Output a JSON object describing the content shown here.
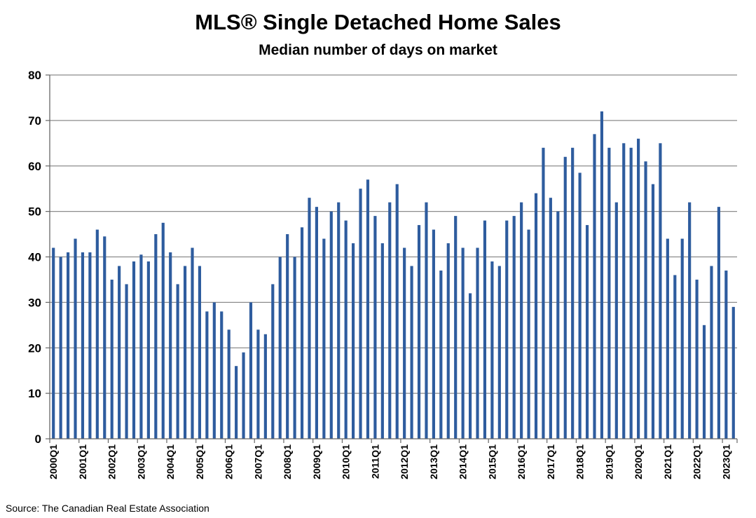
{
  "chart_data": {
    "type": "bar",
    "title": "MLS® Single Detached Home Sales",
    "subtitle": "Median number of days on market",
    "xlabel": "",
    "ylabel": "",
    "ylim": [
      0,
      80
    ],
    "yticks": [
      0,
      10,
      20,
      30,
      40,
      50,
      60,
      70,
      80
    ],
    "grid": true,
    "bar_color": "#2E5C9E",
    "categories": [
      "2000Q1",
      "2000Q2",
      "2000Q3",
      "2000Q4",
      "2001Q1",
      "2001Q2",
      "2001Q3",
      "2001Q4",
      "2002Q1",
      "2002Q2",
      "2002Q3",
      "2002Q4",
      "2003Q1",
      "2003Q2",
      "2003Q3",
      "2003Q4",
      "2004Q1",
      "2004Q2",
      "2004Q3",
      "2004Q4",
      "2005Q1",
      "2005Q2",
      "2005Q3",
      "2005Q4",
      "2006Q1",
      "2006Q2",
      "2006Q3",
      "2006Q4",
      "2007Q1",
      "2007Q2",
      "2007Q3",
      "2007Q4",
      "2008Q1",
      "2008Q2",
      "2008Q3",
      "2008Q4",
      "2009Q1",
      "2009Q2",
      "2009Q3",
      "2009Q4",
      "2010Q1",
      "2010Q2",
      "2010Q3",
      "2010Q4",
      "2011Q1",
      "2011Q2",
      "2011Q3",
      "2011Q4",
      "2012Q1",
      "2012Q2",
      "2012Q3",
      "2012Q4",
      "2013Q1",
      "2013Q2",
      "2013Q3",
      "2013Q4",
      "2014Q1",
      "2014Q2",
      "2014Q3",
      "2014Q4",
      "2015Q1",
      "2015Q2",
      "2015Q3",
      "2015Q4",
      "2016Q1",
      "2016Q2",
      "2016Q3",
      "2016Q4",
      "2017Q1",
      "2017Q2",
      "2017Q3",
      "2017Q4",
      "2018Q1",
      "2018Q2",
      "2018Q3",
      "2018Q4",
      "2019Q1",
      "2019Q2",
      "2019Q3",
      "2019Q4",
      "2020Q1",
      "2020Q2",
      "2020Q3",
      "2020Q4",
      "2021Q1",
      "2021Q2",
      "2021Q3",
      "2021Q4",
      "2022Q1",
      "2022Q2",
      "2022Q3",
      "2022Q4",
      "2023Q1",
      "2023Q2"
    ],
    "tick_labels": [
      "2000Q1",
      "2001Q1",
      "2002Q1",
      "2003Q1",
      "2004Q1",
      "2005Q1",
      "2006Q1",
      "2007Q1",
      "2008Q1",
      "2009Q1",
      "2010Q1",
      "2011Q1",
      "2012Q1",
      "2013Q1",
      "2014Q1",
      "2015Q1",
      "2016Q1",
      "2017Q1",
      "2018Q1",
      "2019Q1",
      "2020Q1",
      "2021Q1",
      "2022Q1",
      "2023Q1"
    ],
    "values": [
      42,
      40,
      41,
      44,
      41,
      41,
      46,
      44.5,
      35,
      38,
      34,
      39,
      40.5,
      39,
      45,
      47.5,
      41,
      34,
      38,
      42,
      38,
      28,
      30,
      28,
      24,
      16,
      19,
      30,
      24,
      23,
      34,
      40,
      45,
      40,
      46.5,
      53,
      51,
      44,
      50,
      52,
      48,
      43,
      55,
      57,
      49,
      43,
      52,
      56,
      42,
      38,
      47,
      52,
      46,
      37,
      43,
      49,
      42,
      32,
      42,
      48,
      39,
      38,
      48,
      49,
      52,
      46,
      54,
      64,
      53,
      50,
      62,
      64,
      58.5,
      47,
      67,
      72,
      64,
      52,
      65,
      64,
      66,
      61,
      56,
      65,
      44,
      36,
      44,
      52,
      35,
      25,
      38,
      51,
      37,
      29
    ]
  },
  "source": "Source: The Canadian Real Estate Association"
}
